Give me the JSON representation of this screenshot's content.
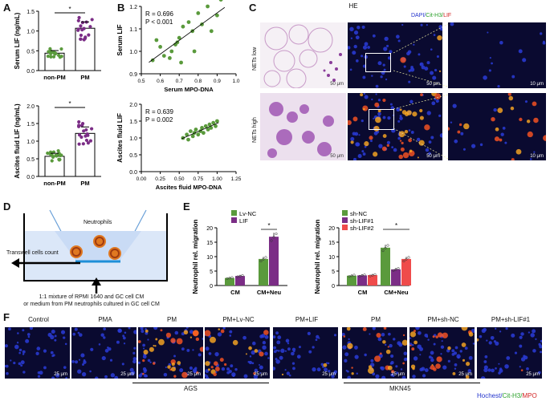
{
  "panels": {
    "A": "A",
    "B": "B",
    "C": "C",
    "D": "D",
    "E": "E",
    "F": "F"
  },
  "colors": {
    "green": "#5a9a3c",
    "purple": "#7b2d86",
    "red": "#ef4b4b",
    "blue_legend": "#2233cc",
    "green_legend": "#2aa02a",
    "red_legend": "#d22222"
  },
  "chart_data": [
    {
      "type": "bar",
      "id": "A_top",
      "categories": [
        "non-PM",
        "PM"
      ],
      "values": [
        0.44,
        1.07
      ],
      "ylabel": "Serum LIF (ng/mL)",
      "ylim": [
        0,
        1.5
      ],
      "yticks": [
        "0.0",
        "0.5",
        "1.0",
        "1.5"
      ],
      "significance": "*"
    },
    {
      "type": "bar",
      "id": "A_bottom",
      "categories": [
        "non-PM",
        "PM"
      ],
      "values": [
        0.57,
        1.22
      ],
      "ylabel": "Ascites fluid LIF (ng/mL)",
      "ylim": [
        0,
        2.0
      ],
      "yticks": [
        "0.0",
        "0.5",
        "1.0",
        "1.5",
        "2.0"
      ],
      "significance": "*"
    },
    {
      "type": "scatter",
      "id": "B_top",
      "xlabel": "Serum MPO-DNA",
      "ylabel": "Serum LIF",
      "xlim": [
        0.5,
        1.0
      ],
      "ylim": [
        0.9,
        1.2
      ],
      "xticks": [
        "0.5",
        "0.6",
        "0.7",
        "0.8",
        "0.9",
        "1.0"
      ],
      "yticks": [
        "0.9",
        "1.0",
        "1.1",
        "1.2"
      ],
      "annotation": [
        "R = 0.696",
        "P < 0.001"
      ],
      "x": [
        0.56,
        0.58,
        0.6,
        0.62,
        0.65,
        0.66,
        0.68,
        0.69,
        0.7,
        0.71,
        0.72,
        0.75,
        0.77,
        0.78,
        0.8,
        0.82,
        0.85,
        0.87,
        0.9,
        0.92
      ],
      "y": [
        0.96,
        1.05,
        1.02,
        0.98,
        0.97,
        1.0,
        1.03,
        1.04,
        1.06,
        0.95,
        1.11,
        1.13,
        1.09,
        1.0,
        1.17,
        1.12,
        1.2,
        1.09,
        1.16,
        1.23
      ]
    },
    {
      "type": "scatter",
      "id": "B_bottom",
      "xlabel": "Ascites fluid MPO-DNA",
      "ylabel": "Ascites fluid LIF",
      "xlim": [
        0.0,
        1.25
      ],
      "ylim": [
        0.0,
        2.0
      ],
      "xticks": [
        "0.00",
        "0.25",
        "0.50",
        "0.75",
        "1.00",
        "1.25"
      ],
      "yticks": [
        "0.0",
        "0.5",
        "1.0",
        "1.5",
        "2.0"
      ],
      "annotation": [
        "R = 0.639",
        "P = 0.002"
      ],
      "x": [
        0.55,
        0.6,
        0.62,
        0.65,
        0.68,
        0.7,
        0.72,
        0.75,
        0.78,
        0.8,
        0.82,
        0.85,
        0.88,
        0.9,
        0.92,
        0.95,
        0.98,
        1.0
      ],
      "y": [
        1.0,
        1.1,
        0.95,
        1.2,
        1.05,
        1.15,
        1.25,
        1.1,
        1.2,
        1.3,
        1.15,
        1.35,
        1.25,
        1.4,
        1.3,
        1.45,
        1.35,
        1.5
      ]
    },
    {
      "type": "bar",
      "id": "E_left",
      "categories": [
        "CM",
        "CM+Neu"
      ],
      "xlabel": "",
      "ylabel": "Neutrophil rel. migration",
      "ylim": [
        0,
        20
      ],
      "yticks": [
        "0",
        "5",
        "10",
        "15",
        "20"
      ],
      "series": [
        {
          "name": "Lv-NC",
          "values": [
            2.6,
            9.2
          ]
        },
        {
          "name": "LIF",
          "values": [
            3.3,
            16.9
          ]
        }
      ],
      "significance": "*"
    },
    {
      "type": "bar",
      "id": "E_right",
      "categories": [
        "CM",
        "CM+Neu"
      ],
      "ylabel": "Neutrophil rel. migration",
      "ylim": [
        0,
        20
      ],
      "yticks": [
        "0",
        "5",
        "10",
        "15",
        "20"
      ],
      "series": [
        {
          "name": "sh-NC",
          "values": [
            3.4,
            13.1
          ]
        },
        {
          "name": "sh-LIF#1",
          "values": [
            3.5,
            5.6
          ]
        },
        {
          "name": "sh-LIF#2",
          "values": [
            3.6,
            9.2
          ]
        }
      ],
      "significance": "*"
    }
  ],
  "panelC": {
    "column_titles": [
      "HE",
      "DAPI/ Cit-H3/ LIF"
    ],
    "title_parts": [
      "DAPI/",
      "Cit-H3/",
      "LIF"
    ],
    "row_labels": [
      "NETs low",
      "NETs high"
    ],
    "scales": [
      "50 μm",
      "50 μm",
      "10 μm",
      "50 μm",
      "50 μm",
      "10 μm"
    ]
  },
  "panelD": {
    "neutrophils": "Neutrophils",
    "transwell": "Transwell cells count",
    "caption_line1": "1:1 mixture of RPMI 1640 and GC cell CM",
    "caption_line2": "or medium from PM neutrophils cultured in GC cell CM"
  },
  "panelF": {
    "labels": [
      "Control",
      "PMA",
      "PM",
      "PM+Lv-NC",
      "PM+LIF",
      "PM",
      "PM+sh-NC",
      "PM+sh-LIF#1"
    ],
    "scale": "25 μm",
    "group_ags": "AGS",
    "group_mkn": "MKN45",
    "legend": [
      "Hochest/",
      "Cit-H3/",
      "MPO"
    ]
  }
}
